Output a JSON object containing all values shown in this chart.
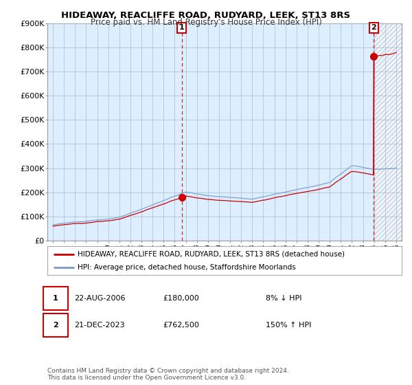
{
  "title1": "HIDEAWAY, REACLIFFE ROAD, RUDYARD, LEEK, ST13 8RS",
  "title2": "Price paid vs. HM Land Registry's House Price Index (HPI)",
  "ylim": [
    0,
    900000
  ],
  "yticks": [
    0,
    100000,
    200000,
    300000,
    400000,
    500000,
    600000,
    700000,
    800000,
    900000
  ],
  "ytick_labels": [
    "£0",
    "£100K",
    "£200K",
    "£300K",
    "£400K",
    "£500K",
    "£600K",
    "£700K",
    "£800K",
    "£900K"
  ],
  "xlim_start": 1994.5,
  "xlim_end": 2026.5,
  "legend_line1": "HIDEAWAY, REACLIFFE ROAD, RUDYARD, LEEK, ST13 8RS (detached house)",
  "legend_line2": "HPI: Average price, detached house, Staffordshire Moorlands",
  "transaction1_date": "22-AUG-2006",
  "transaction1_price": "£180,000",
  "transaction1_hpi": "8% ↓ HPI",
  "transaction1_x": 2006.64,
  "transaction1_y": 180000,
  "transaction2_date": "21-DEC-2023",
  "transaction2_price": "£762,500",
  "transaction2_hpi": "150% ↑ HPI",
  "transaction2_x": 2023.97,
  "transaction2_y": 762500,
  "line_color_red": "#cc0000",
  "line_color_blue": "#7799cc",
  "plot_bg_color": "#ddeeff",
  "bg_color": "#ffffff",
  "grid_color": "#aabbcc",
  "footer_text": "Contains HM Land Registry data © Crown copyright and database right 2024.\nThis data is licensed under the Open Government Licence v3.0."
}
